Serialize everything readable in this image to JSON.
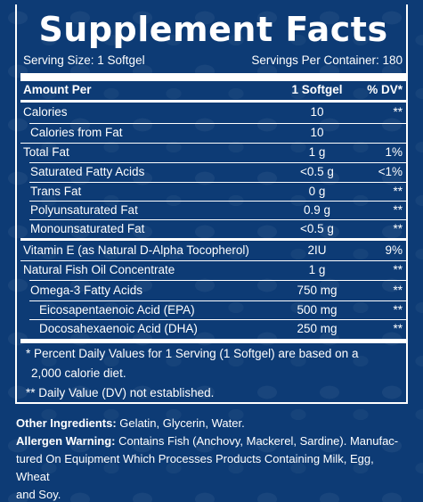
{
  "title": "Supplement Facts",
  "serving_size": "Serving Size: 1 Softgel",
  "servings_per_container": "Servings Per Container: 180",
  "header": {
    "amount_per": "Amount Per",
    "unit": "1 Softgel",
    "dv": "% DV*"
  },
  "rows": [
    {
      "name": "Calories",
      "amount": "10",
      "dv": "**"
    },
    {
      "name": "Calories from Fat",
      "amount": "10",
      "dv": ""
    },
    {
      "name": "Total Fat",
      "amount": "1 g",
      "dv": "1%"
    },
    {
      "name": "Saturated Fatty Acids",
      "amount": "<0.5 g",
      "dv": "<1%"
    },
    {
      "name": "Trans Fat",
      "amount": "0 g",
      "dv": "**"
    },
    {
      "name": "Polyunsaturated Fat",
      "amount": "0.9 g",
      "dv": "**"
    },
    {
      "name": "Monounsaturated Fat",
      "amount": "<0.5 g",
      "dv": "**"
    },
    {
      "name": "Vitamin E (as Natural D-Alpha Tocopherol)",
      "amount": "2IU",
      "dv": "9%"
    },
    {
      "name": "Natural Fish Oil Concentrate",
      "amount": "1 g",
      "dv": "**"
    },
    {
      "name": "Omega-3 Fatty Acids",
      "amount": "750 mg",
      "dv": "**"
    },
    {
      "name": "Eicosapentaenoic Acid (EPA)",
      "amount": "500 mg",
      "dv": "**"
    },
    {
      "name": "Docosahexaenoic Acid (DHA)",
      "amount": "250 mg",
      "dv": "**"
    }
  ],
  "footnote_1a": "* Percent Daily Values for 1 Serving (1 Softgel) are based on a",
  "footnote_1b": "2,000 calorie diet.",
  "footnote_2": "** Daily Value (DV) not established.",
  "other_ingredients_label": "Other Ingredients:",
  "other_ingredients": " Gelatin, Glycerin, Water.",
  "allergen_label": "Allergen Warning:",
  "allergen_line1": " Contains Fish (Anchovy, Mackerel, Sardine). Manufac-",
  "allergen_line2": "tured On Equipment Which Processes Products Containing Milk, Egg, Wheat",
  "allergen_line3": "and Soy.",
  "colors": {
    "background": "#0d3b75",
    "text": "#ffffff"
  }
}
